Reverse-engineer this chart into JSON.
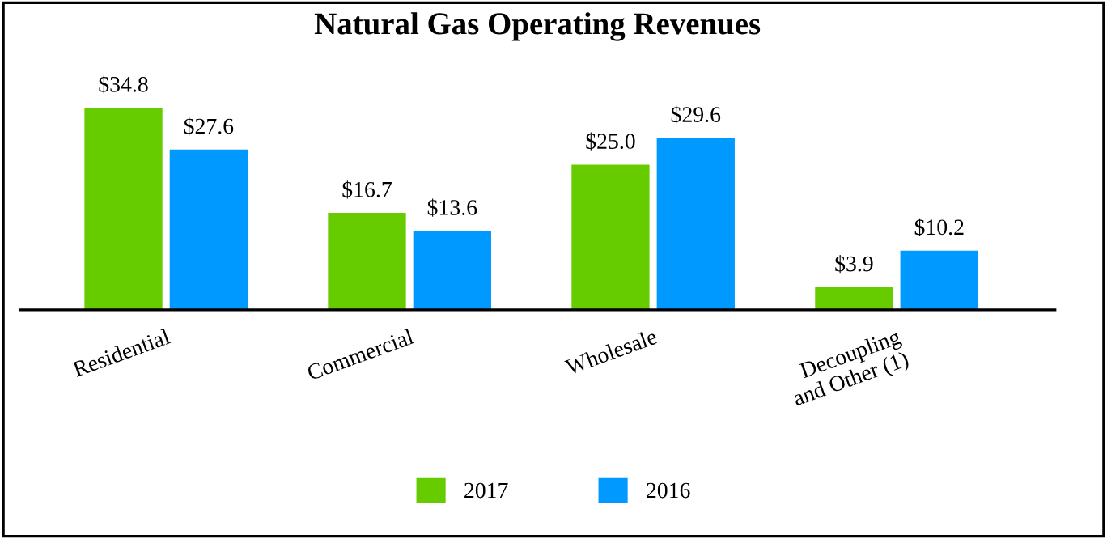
{
  "chart_data": {
    "type": "bar",
    "title": "Natural Gas Operating Revenues",
    "categories": [
      "Residential",
      "Commercial",
      "Wholesale",
      "Decoupling\nand Other (1)"
    ],
    "series": [
      {
        "name": "2017",
        "color": "#66cc00",
        "values": [
          34.8,
          16.7,
          25.0,
          3.9
        ],
        "value_labels": [
          "$34.8",
          "$16.7",
          "$25.0",
          "$3.9"
        ]
      },
      {
        "name": "2016",
        "color": "#0099ff",
        "values": [
          27.6,
          13.6,
          29.6,
          10.2
        ],
        "value_labels": [
          "$27.6",
          "$13.6",
          "$29.6",
          "$10.2"
        ]
      }
    ],
    "tick_labels": "x",
    "legend": "bottom",
    "grid": false
  }
}
